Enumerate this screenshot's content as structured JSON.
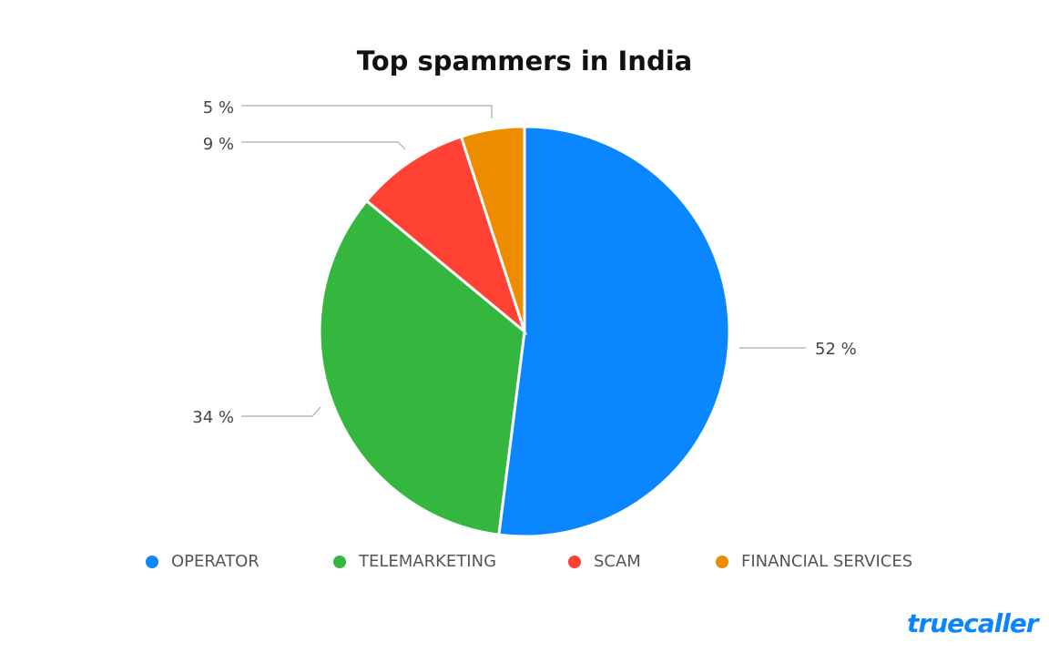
{
  "chart_data": {
    "type": "pie",
    "title": "Top spammers in India",
    "start_angle": "12 o'clock, clockwise",
    "legend_position": "bottom",
    "slices": [
      {
        "label": "OPERATOR",
        "value": 52,
        "display": "52 %",
        "color": "#0a87ff"
      },
      {
        "label": "TELEMARKETING",
        "value": 34,
        "display": "34 %",
        "color": "#34b63f"
      },
      {
        "label": "SCAM",
        "value": 9,
        "display": "9 %",
        "color": "#ff4233"
      },
      {
        "label": "FINANCIAL SERVICES",
        "value": 5,
        "display": "5 %",
        "color": "#ee8c00"
      }
    ]
  },
  "brand": {
    "logo_text": "truecaller",
    "color": "#0a84ff"
  }
}
